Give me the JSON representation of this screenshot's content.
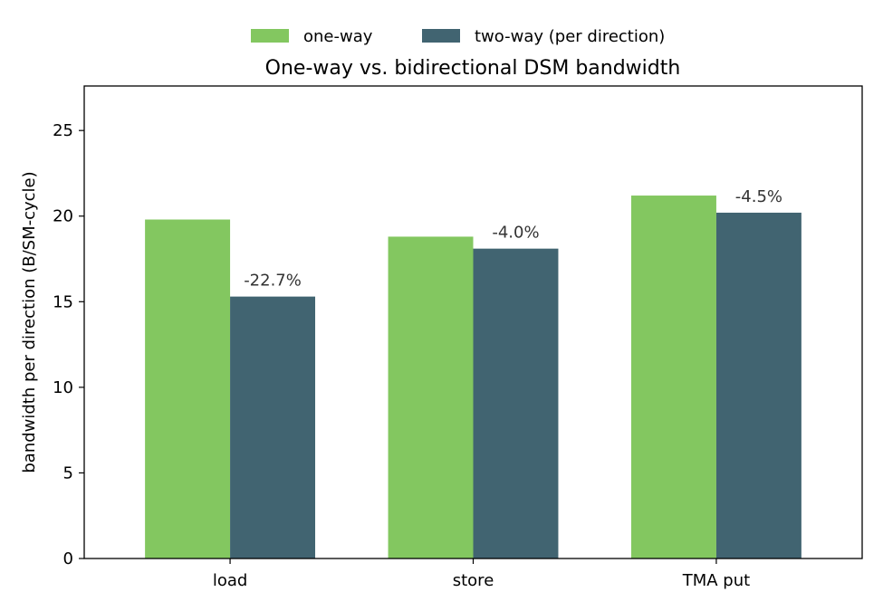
{
  "chart_data": {
    "type": "bar",
    "title": "One-way vs. bidirectional DSM bandwidth",
    "xlabel": "",
    "ylabel": "bandwidth per direction (B/SM-cycle)",
    "categories": [
      "load",
      "store",
      "TMA put"
    ],
    "series": [
      {
        "name": "one-way",
        "color": "#83c760",
        "values": [
          19.8,
          18.8,
          21.2
        ]
      },
      {
        "name": "two-way (per direction)",
        "color": "#416471",
        "values": [
          15.3,
          18.1,
          20.2
        ]
      }
    ],
    "annotations": [
      "-22.7%",
      "-4.0%",
      "-4.5%"
    ],
    "ylim": [
      0,
      27.6
    ],
    "yticks": [
      0,
      5,
      10,
      15,
      20,
      25
    ],
    "grid": false,
    "legend_position": "top-center"
  }
}
